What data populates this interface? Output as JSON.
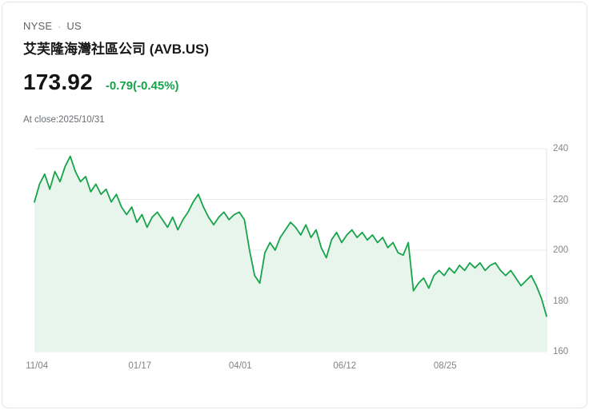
{
  "header": {
    "exchange": "NYSE",
    "separator": "·",
    "region": "US",
    "title": "艾芙隆海灣社區公司 (AVB.US)"
  },
  "quote": {
    "price": "173.92",
    "change": "-0.79(-0.45%)",
    "change_color": "#16a34a",
    "as_of": "At close:2025/10/31"
  },
  "chart_data": {
    "type": "area",
    "title": "AVB.US price history, 2024/11/04 - 2025/10/31",
    "xlabel": "",
    "ylabel": "",
    "ylim": [
      160,
      240
    ],
    "yticks": [
      240,
      220,
      200,
      180,
      160
    ],
    "grid": true,
    "legend_position": "none",
    "x_tick_labels": [
      "11/04",
      "01/17",
      "04/01",
      "06/12",
      "08/25"
    ],
    "x_tick_positions": [
      0.005,
      0.206,
      0.402,
      0.606,
      0.802
    ],
    "line_color": "#16a34a",
    "fill_color": "#e8f5ec",
    "grid_color": "#ebebeb",
    "axis_line_color": "#e3e3e3",
    "points": [
      [
        0.0,
        219
      ],
      [
        0.01,
        226
      ],
      [
        0.02,
        230
      ],
      [
        0.03,
        224
      ],
      [
        0.04,
        231
      ],
      [
        0.05,
        227
      ],
      [
        0.06,
        233
      ],
      [
        0.07,
        237
      ],
      [
        0.08,
        231
      ],
      [
        0.09,
        227
      ],
      [
        0.1,
        229
      ],
      [
        0.11,
        223
      ],
      [
        0.12,
        226
      ],
      [
        0.13,
        222
      ],
      [
        0.14,
        224
      ],
      [
        0.15,
        219
      ],
      [
        0.16,
        222
      ],
      [
        0.17,
        217
      ],
      [
        0.18,
        214
      ],
      [
        0.19,
        217
      ],
      [
        0.2,
        211
      ],
      [
        0.21,
        214
      ],
      [
        0.22,
        209
      ],
      [
        0.23,
        213
      ],
      [
        0.24,
        215
      ],
      [
        0.25,
        212
      ],
      [
        0.26,
        209
      ],
      [
        0.27,
        213
      ],
      [
        0.28,
        208
      ],
      [
        0.29,
        212
      ],
      [
        0.3,
        215
      ],
      [
        0.31,
        219
      ],
      [
        0.32,
        222
      ],
      [
        0.33,
        217
      ],
      [
        0.34,
        213
      ],
      [
        0.35,
        210
      ],
      [
        0.36,
        213
      ],
      [
        0.37,
        215
      ],
      [
        0.38,
        212
      ],
      [
        0.39,
        214
      ],
      [
        0.4,
        215
      ],
      [
        0.41,
        212
      ],
      [
        0.42,
        200
      ],
      [
        0.43,
        190
      ],
      [
        0.44,
        187
      ],
      [
        0.45,
        199
      ],
      [
        0.46,
        203
      ],
      [
        0.47,
        200
      ],
      [
        0.48,
        205
      ],
      [
        0.49,
        208
      ],
      [
        0.5,
        211
      ],
      [
        0.51,
        209
      ],
      [
        0.52,
        206
      ],
      [
        0.53,
        210
      ],
      [
        0.54,
        205
      ],
      [
        0.55,
        208
      ],
      [
        0.56,
        201
      ],
      [
        0.57,
        197
      ],
      [
        0.58,
        204
      ],
      [
        0.59,
        207
      ],
      [
        0.6,
        203
      ],
      [
        0.61,
        206
      ],
      [
        0.62,
        208
      ],
      [
        0.63,
        205
      ],
      [
        0.64,
        207
      ],
      [
        0.65,
        204
      ],
      [
        0.66,
        206
      ],
      [
        0.67,
        203
      ],
      [
        0.68,
        205
      ],
      [
        0.69,
        201
      ],
      [
        0.7,
        203
      ],
      [
        0.71,
        199
      ],
      [
        0.72,
        198
      ],
      [
        0.73,
        203
      ],
      [
        0.74,
        184
      ],
      [
        0.75,
        187
      ],
      [
        0.76,
        189
      ],
      [
        0.77,
        185
      ],
      [
        0.78,
        190
      ],
      [
        0.79,
        192
      ],
      [
        0.8,
        190
      ],
      [
        0.81,
        193
      ],
      [
        0.82,
        191
      ],
      [
        0.83,
        194
      ],
      [
        0.84,
        192
      ],
      [
        0.85,
        195
      ],
      [
        0.86,
        193
      ],
      [
        0.87,
        195
      ],
      [
        0.88,
        192
      ],
      [
        0.89,
        194
      ],
      [
        0.9,
        195
      ],
      [
        0.91,
        192
      ],
      [
        0.92,
        190
      ],
      [
        0.93,
        192
      ],
      [
        0.94,
        189
      ],
      [
        0.95,
        186
      ],
      [
        0.96,
        188
      ],
      [
        0.97,
        190
      ],
      [
        0.98,
        186
      ],
      [
        0.99,
        181
      ],
      [
        1.0,
        173.92
      ]
    ]
  }
}
